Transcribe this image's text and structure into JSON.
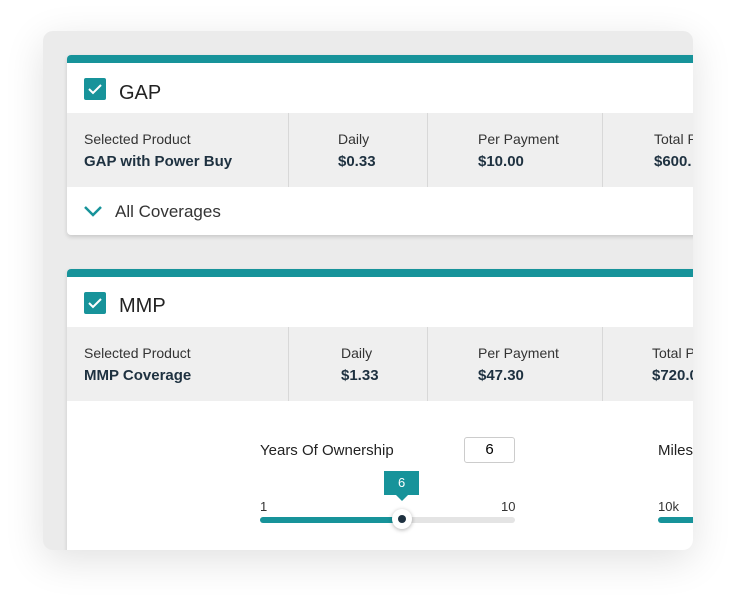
{
  "gap": {
    "title": "GAP",
    "columns": [
      {
        "label": "Selected Product",
        "value": "GAP with Power Buy"
      },
      {
        "label": "Daily",
        "value": "$0.33"
      },
      {
        "label": "Per Payment",
        "value": "$10.00"
      },
      {
        "label": "Total P",
        "value": "$600."
      }
    ],
    "footer": "All Coverages"
  },
  "mmp": {
    "title": "MMP",
    "columns": [
      {
        "label": "Selected Product",
        "value": "MMP Coverage"
      },
      {
        "label": "Daily",
        "value": "$1.33"
      },
      {
        "label": "Per Payment",
        "value": "$47.30"
      },
      {
        "label": "Total P",
        "value": "$720.0"
      }
    ],
    "years": {
      "label": "Years Of Ownership",
      "value": 6,
      "min": 1,
      "max": 10
    },
    "miles": {
      "label": "Miles",
      "min": "10k"
    }
  }
}
